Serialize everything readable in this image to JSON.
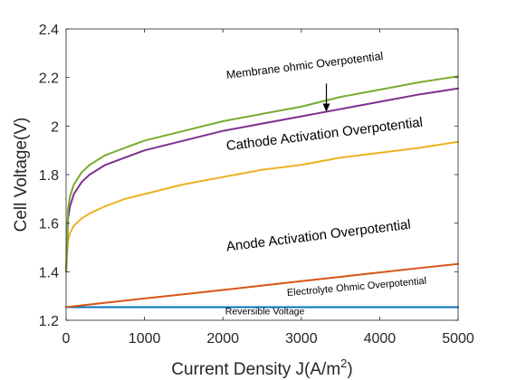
{
  "chart_data": {
    "type": "line",
    "title": "",
    "xlabel": "Current Density J(A/m",
    "xlabel_sup": "2",
    "xlabel_close": ")",
    "ylabel": "Cell Voltage(V)",
    "xlim": [
      0,
      5000
    ],
    "ylim": [
      1.2,
      2.4
    ],
    "x_ticks": [
      0,
      1000,
      2000,
      3000,
      4000,
      5000
    ],
    "y_ticks": [
      "1.2",
      "1.4",
      "1.6",
      "1.8",
      "2",
      "2.2",
      "2.4"
    ],
    "grid": false,
    "series": [
      {
        "color": "#0072BD",
        "x": [
          0,
          500,
          1000,
          1500,
          2000,
          2500,
          3000,
          3500,
          4000,
          4500,
          5000
        ],
        "y": [
          1.254,
          1.254,
          1.254,
          1.254,
          1.254,
          1.254,
          1.254,
          1.254,
          1.254,
          1.254,
          1.254
        ]
      },
      {
        "color": "#D95319",
        "x": [
          0,
          500,
          1000,
          1500,
          2000,
          2500,
          3000,
          3500,
          4000,
          4500,
          5000
        ],
        "y": [
          1.254,
          1.272,
          1.29,
          1.307,
          1.325,
          1.343,
          1.361,
          1.379,
          1.397,
          1.415,
          1.432
        ]
      },
      {
        "color": "#EDB120",
        "x": [
          0,
          25,
          50,
          100,
          200,
          300,
          500,
          750,
          1000,
          1500,
          2000,
          2500,
          3000,
          3500,
          4000,
          4500,
          5000
        ],
        "y": [
          1.41,
          1.53,
          1.56,
          1.59,
          1.62,
          1.64,
          1.67,
          1.7,
          1.72,
          1.76,
          1.79,
          1.82,
          1.84,
          1.87,
          1.89,
          1.91,
          1.935
        ]
      },
      {
        "color": "#7E2F8E",
        "x": [
          0,
          25,
          50,
          100,
          200,
          300,
          500,
          750,
          1000,
          1500,
          2000,
          2500,
          3000,
          3500,
          4000,
          4500,
          5000
        ],
        "y": [
          1.4,
          1.62,
          1.67,
          1.72,
          1.77,
          1.8,
          1.84,
          1.87,
          1.9,
          1.94,
          1.98,
          2.01,
          2.04,
          2.07,
          2.1,
          2.13,
          2.155
        ]
      },
      {
        "color": "#77AC30",
        "x": [
          0,
          25,
          50,
          100,
          200,
          300,
          500,
          750,
          1000,
          1500,
          2000,
          2500,
          3000,
          3500,
          4000,
          4500,
          5000
        ],
        "y": [
          1.4,
          1.66,
          1.71,
          1.76,
          1.81,
          1.84,
          1.88,
          1.91,
          1.94,
          1.98,
          2.02,
          2.05,
          2.08,
          2.12,
          2.15,
          2.18,
          2.205
        ]
      }
    ],
    "annotations": [
      {
        "text": "Membrane ohmic Overpotential",
        "x": 2050,
        "y": 2.195,
        "size": 12.5,
        "angle": -7
      },
      {
        "text": "Cathode Activation Overpotential",
        "x": 2050,
        "y": 1.9,
        "size": 15,
        "angle": -7
      },
      {
        "text": "Anode Activation Overpotential",
        "x": 2050,
        "y": 1.485,
        "size": 15,
        "angle": -7
      },
      {
        "text": "Electrolyte Ohmic Overpotential",
        "x": 2820,
        "y": 1.3,
        "size": 11,
        "angle": -5
      },
      {
        "text": "Reversible Voltage",
        "x": 2030,
        "y": 1.225,
        "size": 10.5,
        "angle": 0
      }
    ],
    "arrow": {
      "from": [
        3320,
        2.175
      ],
      "to": [
        3320,
        2.085
      ]
    }
  }
}
